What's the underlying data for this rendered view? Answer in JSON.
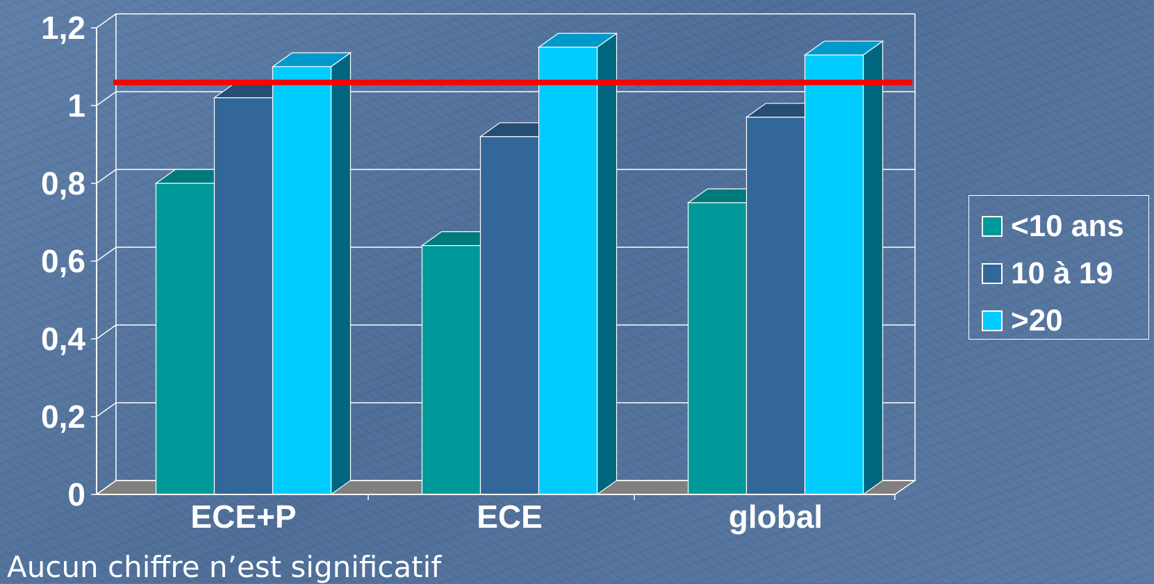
{
  "chart_data": {
    "type": "bar",
    "categories": [
      "ECE+P",
      "ECE",
      "global"
    ],
    "series": [
      {
        "name": "<10 ans",
        "values": [
          0.8,
          0.64,
          0.75
        ]
      },
      {
        "name": "10 à 19",
        "values": [
          1.02,
          0.92,
          0.97
        ]
      },
      {
        "name": ">20",
        "values": [
          1.1,
          1.15,
          1.13
        ]
      }
    ],
    "y_ticks": [
      "0",
      "0,2",
      "0,4",
      "0,6",
      "0,8",
      "1",
      "1,2"
    ],
    "ylim": [
      0,
      1.2
    ],
    "reference_line": 1.02,
    "grid": true,
    "legend_position": "right",
    "three_d": true
  },
  "colors": {
    "series": [
      "#009999",
      "#336699",
      "#00ccff"
    ],
    "series_side": [
      "#006666",
      "#1f3f66",
      "#006680"
    ],
    "series_top": [
      "#007a7a",
      "#264d73",
      "#0099cc"
    ],
    "reference_line": "#ff0000",
    "floor": "#808080",
    "grid": "#ffffff"
  },
  "legend": {
    "items": [
      {
        "label": "<10 ans"
      },
      {
        "label": "10 à 19"
      },
      {
        "label": ">20"
      }
    ]
  },
  "note": "Aucun chiffre n’est significatif"
}
